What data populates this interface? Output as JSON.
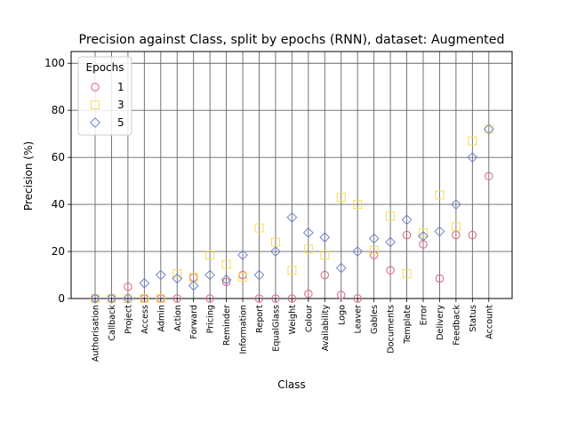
{
  "chart_data": {
    "type": "scatter",
    "title": "Precision against Class, split by epochs (RNN), dataset: Augmented",
    "xlabel": "Class",
    "ylabel": "Precision (%)",
    "ylim": [
      0,
      105
    ],
    "yticks": [
      0,
      20,
      40,
      60,
      80,
      100
    ],
    "grid": true,
    "legend_title": "Epochs",
    "legend_position": "top-left",
    "categories": [
      "Authorisation",
      "Callback",
      "Project",
      "Access",
      "Admin",
      "Action",
      "Forward",
      "Pricing",
      "Reminder",
      "Information",
      "Report",
      "EqualGlass",
      "Weight",
      "Colour",
      "Availability",
      "Logo",
      "Leaver",
      "Gables",
      "Documents",
      "Template",
      "Error",
      "Delivery",
      "Feedback",
      "Status",
      "Account"
    ],
    "series": [
      {
        "name": "1",
        "marker": "circle",
        "color": "#e0607a",
        "values": [
          0,
          0,
          5,
          0,
          0,
          0,
          9,
          0,
          7,
          10,
          0,
          0,
          0,
          2,
          10,
          1.5,
          0,
          18.5,
          12,
          27,
          23,
          8.5,
          27,
          27,
          52
        ]
      },
      {
        "name": "3",
        "marker": "square",
        "color": "#f5dc5a",
        "values": [
          0,
          0,
          0,
          0,
          0,
          10.5,
          9,
          18.5,
          14.5,
          9,
          30,
          24,
          12,
          21,
          18.5,
          43,
          40,
          20.5,
          35,
          10.5,
          28,
          44,
          30.5,
          67,
          72
        ]
      },
      {
        "name": "5",
        "marker": "diamond",
        "color": "#7083cc",
        "values": [
          0,
          0,
          0,
          6.5,
          10,
          8.5,
          5.5,
          10,
          8,
          18.5,
          10,
          20,
          34.5,
          28,
          26,
          13,
          20,
          25.5,
          24,
          33.5,
          26.5,
          28.5,
          40,
          60,
          72
        ]
      }
    ]
  }
}
